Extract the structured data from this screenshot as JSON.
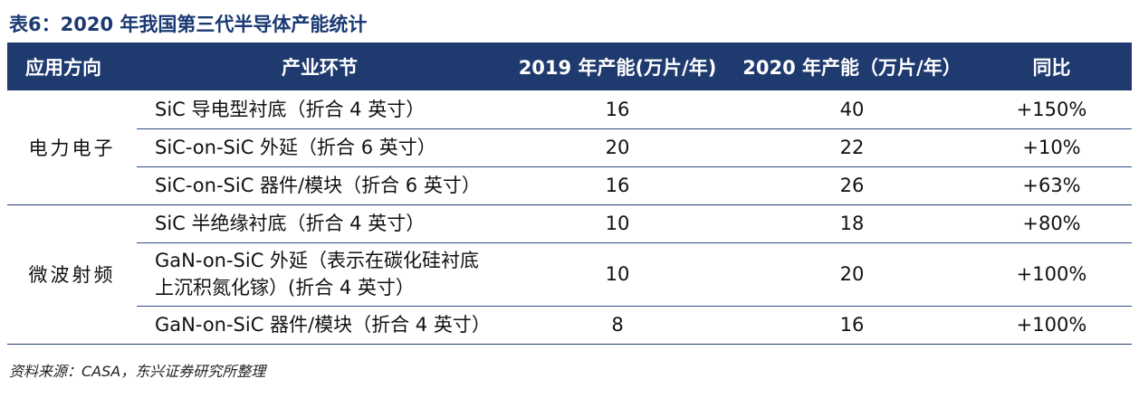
{
  "title": "表6：2020 年我国第三代半导体产能统计",
  "table": {
    "headers": [
      "应用方向",
      "产业环节",
      "2019 年产能(万片/年)",
      "2020 年产能（万片/年）",
      "同比"
    ],
    "groups": [
      {
        "category": "电力电子",
        "rows": [
          {
            "stage": "SiC 导电型衬底（折合 4 英寸）",
            "cap_2019": "16",
            "cap_2020": "40",
            "yoy": "+150%"
          },
          {
            "stage": "SiC-on-SiC 外延（折合 6 英寸）",
            "cap_2019": "20",
            "cap_2020": "22",
            "yoy": "+10%"
          },
          {
            "stage": "SiC-on-SiC 器件/模块（折合 6 英寸）",
            "cap_2019": "16",
            "cap_2020": "26",
            "yoy": "+63%"
          }
        ]
      },
      {
        "category": "微波射频",
        "rows": [
          {
            "stage": "SiC 半绝缘衬底（折合 4 英寸）",
            "cap_2019": "10",
            "cap_2020": "18",
            "yoy": "+80%"
          },
          {
            "stage_line1": "GaN-on-SiC 外延（表示在碳化硅衬底",
            "stage_line2": "上沉积氮化镓）(折合 4 英寸）",
            "cap_2019": "10",
            "cap_2020": "20",
            "yoy": "+100%"
          },
          {
            "stage": "GaN-on-SiC 器件/模块（折合 4 英寸）",
            "cap_2019": "8",
            "cap_2020": "16",
            "yoy": "+100%"
          }
        ]
      }
    ]
  },
  "source": "资料来源：CASA，东兴证券研究所整理"
}
